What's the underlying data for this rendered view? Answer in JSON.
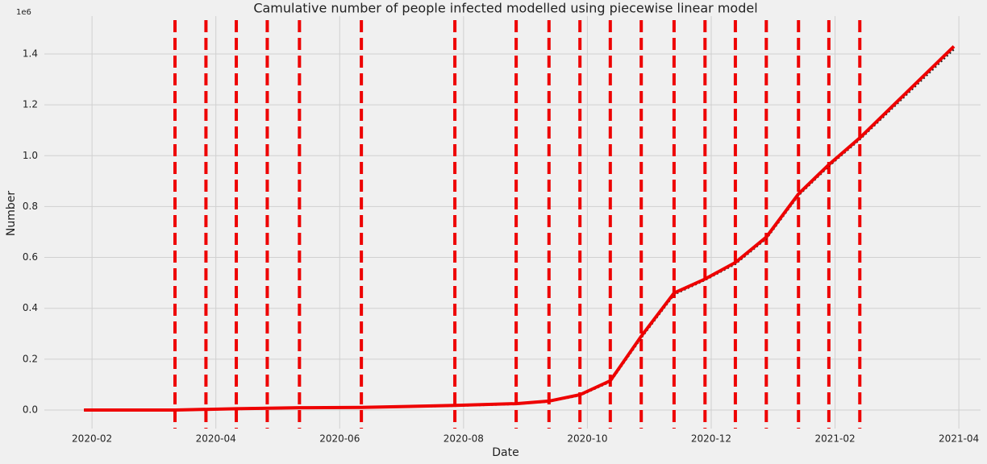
{
  "chart_data": {
    "type": "line",
    "title": "Camulative number of people infected modelled using piecewise linear model",
    "x_label": "Date",
    "y_label": "Number",
    "y_offset_label": "1e6",
    "x": [
      0.87,
      2.34,
      3.33,
      4.35,
      5.35,
      6.86,
      7.85,
      8.38,
      8.88,
      9.37,
      9.87,
      10.4,
      10.9,
      11.39,
      11.89,
      12.41,
      12.9,
      13.4,
      14.92
    ],
    "series": [
      {
        "color": "#222222",
        "values": [
          0.0,
          0.0,
          0.004,
          0.009,
          0.01,
          0.017,
          0.024,
          0.034,
          0.058,
          0.112,
          0.285,
          0.455,
          0.512,
          0.575,
          0.675,
          0.845,
          0.96,
          1.065,
          1.42
        ]
      },
      {
        "color": "#ee0000",
        "values": [
          0.0,
          0.0,
          0.005,
          0.009,
          0.01,
          0.018,
          0.025,
          0.035,
          0.06,
          0.115,
          0.29,
          0.46,
          0.515,
          0.58,
          0.68,
          0.85,
          0.965,
          1.07,
          1.43
        ]
      }
    ],
    "changepoints": [
      2.34,
      2.84,
      3.33,
      3.83,
      4.35,
      5.35,
      6.86,
      7.85,
      8.38,
      8.88,
      9.37,
      9.87,
      10.4,
      10.9,
      11.39,
      11.89,
      12.41,
      12.9,
      13.4
    ],
    "changepoint_color": "#ee0000",
    "xlim": [
      0.23,
      15.35
    ],
    "ylim": [
      -0.073,
      1.549
    ],
    "xticks": [
      {
        "value": 1,
        "label": "2020-02"
      },
      {
        "value": 3,
        "label": "2020-04"
      },
      {
        "value": 5,
        "label": "2020-06"
      },
      {
        "value": 7,
        "label": "2020-08"
      },
      {
        "value": 9,
        "label": "2020-10"
      },
      {
        "value": 11,
        "label": "2020-12"
      },
      {
        "value": 13,
        "label": "2021-02"
      },
      {
        "value": 15,
        "label": "2021-04"
      }
    ],
    "yticks": [
      {
        "value": 0,
        "label": "0.0"
      },
      0.2,
      0.4,
      0.6,
      0.8,
      {
        "value": 1,
        "label": "1.0"
      },
      1.2,
      1.4
    ],
    "grid": true
  }
}
